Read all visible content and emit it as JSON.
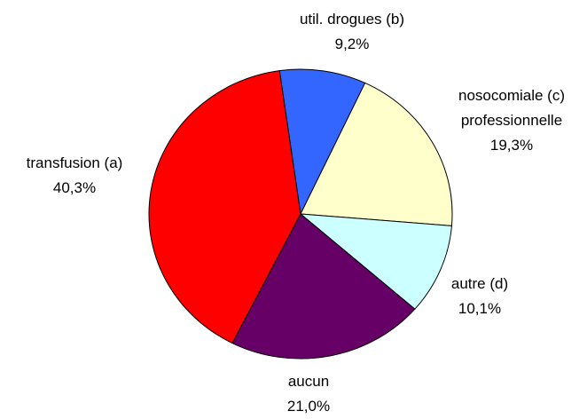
{
  "chart_data": {
    "type": "pie",
    "categories": [
      "util. drogues (b)",
      "nosocomiale (c) professionnelle",
      "autre (d)",
      "aucun",
      "transfusion (a)"
    ],
    "values": [
      9.2,
      19.3,
      10.1,
      21.0,
      40.3
    ],
    "value_labels": [
      "9,2%",
      "19,3%",
      "10,1%",
      "21,0%",
      "40,3%"
    ],
    "colors": [
      "#3366ff",
      "#ffffcc",
      "#ccffff",
      "#660066",
      "#ff0000"
    ]
  }
}
